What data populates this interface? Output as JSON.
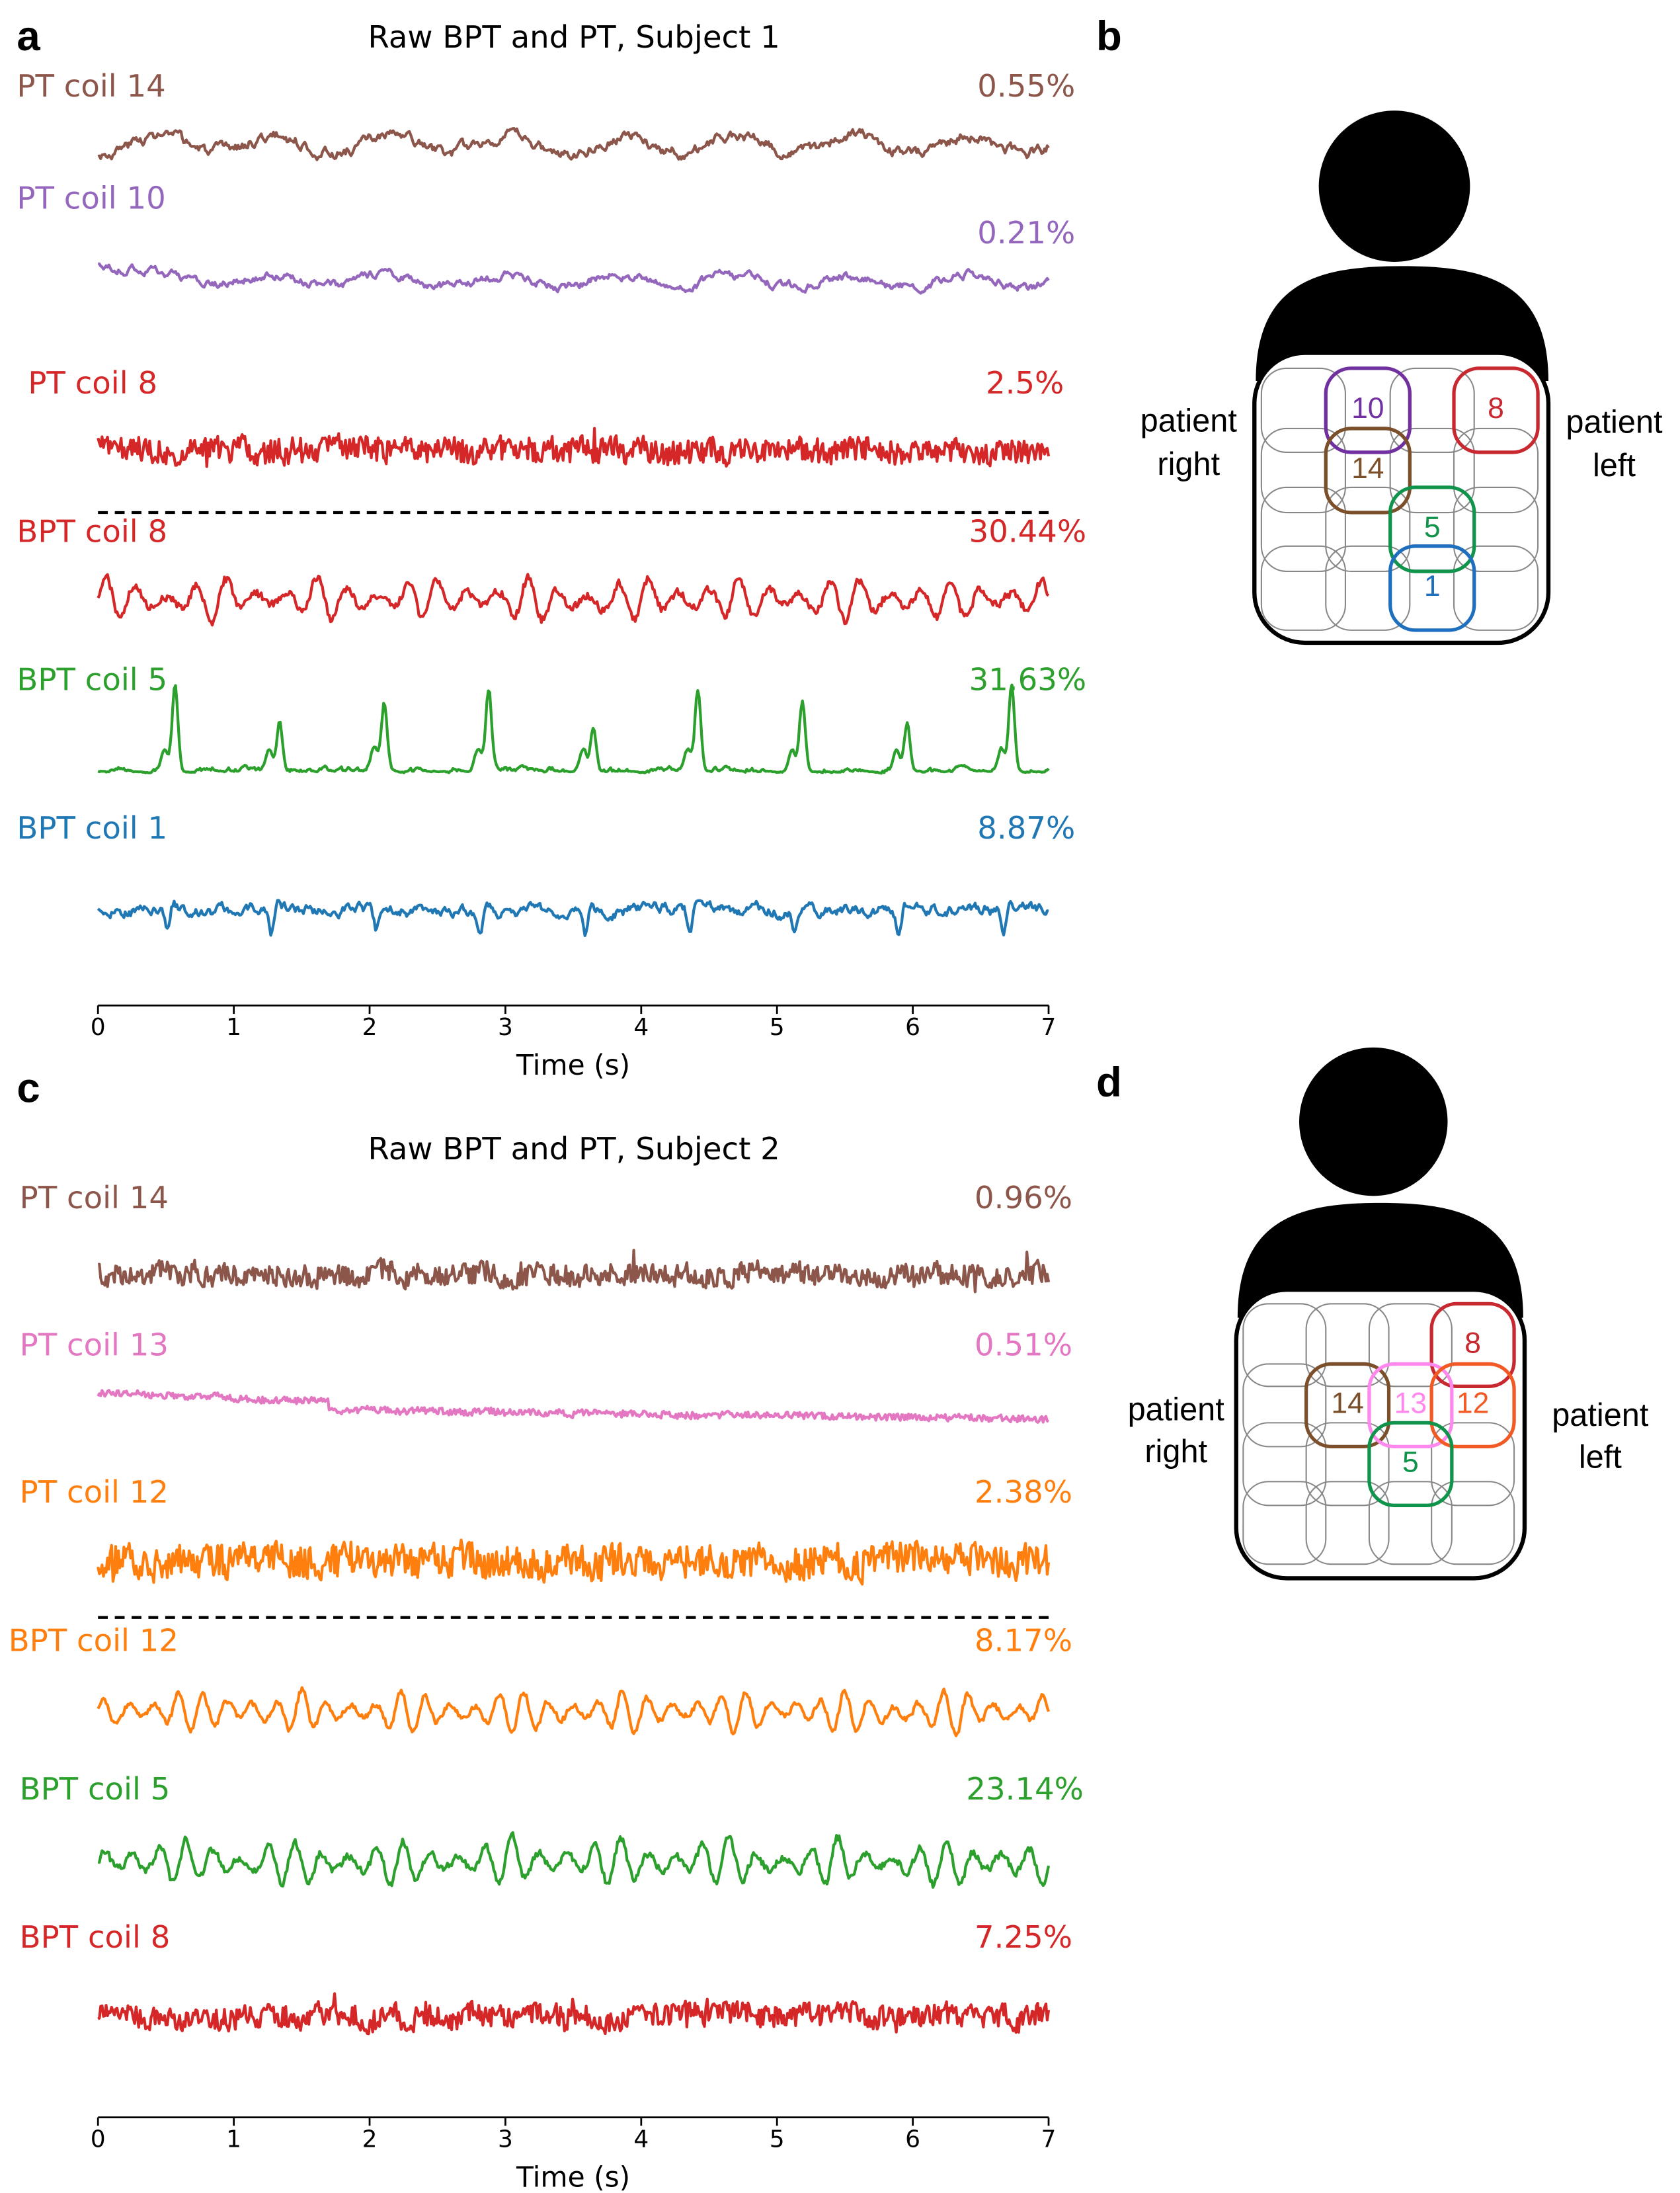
{
  "panel_letters": {
    "a": "a",
    "b": "b",
    "c": "c",
    "d": "d"
  },
  "chart_data": [
    {
      "type": "line",
      "title": "Raw BPT and PT, Subject 1",
      "xlabel": "Time (s)",
      "xlim": [
        0,
        7
      ],
      "xticks": [
        "0",
        "1",
        "2",
        "3",
        "4",
        "5",
        "6",
        "7"
      ],
      "series": [
        {
          "name": "PT coil 14",
          "percent": "0.55%",
          "color": "#8c564b",
          "kind": "wave",
          "period_s": 0.85,
          "noise": 0.35
        },
        {
          "name": "PT coil 10",
          "percent": "0.21%",
          "color": "#9467bd",
          "kind": "decay",
          "period_s": 0.85,
          "noise": 0.35
        },
        {
          "name": "PT coil 8",
          "percent": "2.5%",
          "color": "#d62728",
          "kind": "noise",
          "period_s": 0.85,
          "noise": 0.6
        },
        {
          "name": "BPT coil 8",
          "percent": "30.44%",
          "color": "#d62728",
          "kind": "burst",
          "period_s": 0.77,
          "noise": 0.12,
          "osc_hz": 4.5
        },
        {
          "name": "BPT coil 5",
          "percent": "31.63%",
          "color": "#2ca02c",
          "kind": "peaks",
          "period_s": 0.77,
          "noise": 0.05
        },
        {
          "name": "BPT coil 1",
          "percent": "8.87%",
          "color": "#1f77b4",
          "kind": "spiky",
          "period_s": 0.77,
          "noise": 0.3
        }
      ]
    },
    {
      "type": "line",
      "title": "Raw BPT and PT, Subject 2",
      "xlabel": "Time (s)",
      "xlim": [
        0,
        7
      ],
      "xticks": [
        "0",
        "1",
        "2",
        "3",
        "4",
        "5",
        "6",
        "7"
      ],
      "series": [
        {
          "name": "PT coil 14",
          "percent": "0.96%",
          "color": "#8c564b",
          "kind": "noise",
          "period_s": 0.8,
          "noise": 0.5
        },
        {
          "name": "PT coil 13",
          "percent": "0.51%",
          "color": "#e377c2",
          "kind": "trend",
          "period_s": 0.8,
          "noise": 0.3
        },
        {
          "name": "PT coil 12",
          "percent": "2.38%",
          "color": "#ff7f0e",
          "kind": "noise",
          "period_s": 0.8,
          "noise": 0.65
        },
        {
          "name": "BPT coil 12",
          "percent": "8.17%",
          "color": "#ff7f0e",
          "kind": "burst",
          "period_s": 0.8,
          "noise": 0.08,
          "osc_hz": 5.5
        },
        {
          "name": "BPT coil 5",
          "percent": "23.14%",
          "color": "#2ca02c",
          "kind": "burst",
          "period_s": 0.8,
          "noise": 0.1,
          "osc_hz": 5.0
        },
        {
          "name": "BPT coil 8",
          "percent": "7.25%",
          "color": "#d62728",
          "kind": "noise",
          "period_s": 0.8,
          "noise": 0.45
        }
      ]
    }
  ],
  "diagrams": [
    {
      "side_left": [
        "patient",
        "right"
      ],
      "side_right": [
        "patient",
        "left"
      ],
      "coils": [
        {
          "label": "10",
          "col": 1,
          "row": 0,
          "color": "#7030a0"
        },
        {
          "label": "8",
          "col": 3,
          "row": 0,
          "color": "#c8282f"
        },
        {
          "label": "14",
          "col": 1,
          "row": 1,
          "color": "#7b4f2a"
        },
        {
          "label": "5",
          "col": 2,
          "row": 2,
          "color": "#10934a"
        },
        {
          "label": "1",
          "col": 2,
          "row": 3,
          "color": "#1f6fbf"
        }
      ]
    },
    {
      "side_left": [
        "patient",
        "right"
      ],
      "side_right": [
        "patient",
        "left"
      ],
      "coils": [
        {
          "label": "8",
          "col": 3,
          "row": 0,
          "color": "#c8282f"
        },
        {
          "label": "14",
          "col": 1,
          "row": 1,
          "color": "#7b4f2a"
        },
        {
          "label": "13",
          "col": 2,
          "row": 1,
          "color": "#ff88ee"
        },
        {
          "label": "12",
          "col": 3,
          "row": 1,
          "color": "#f15a24"
        },
        {
          "label": "5",
          "col": 2,
          "row": 2,
          "color": "#10934a"
        }
      ]
    }
  ]
}
